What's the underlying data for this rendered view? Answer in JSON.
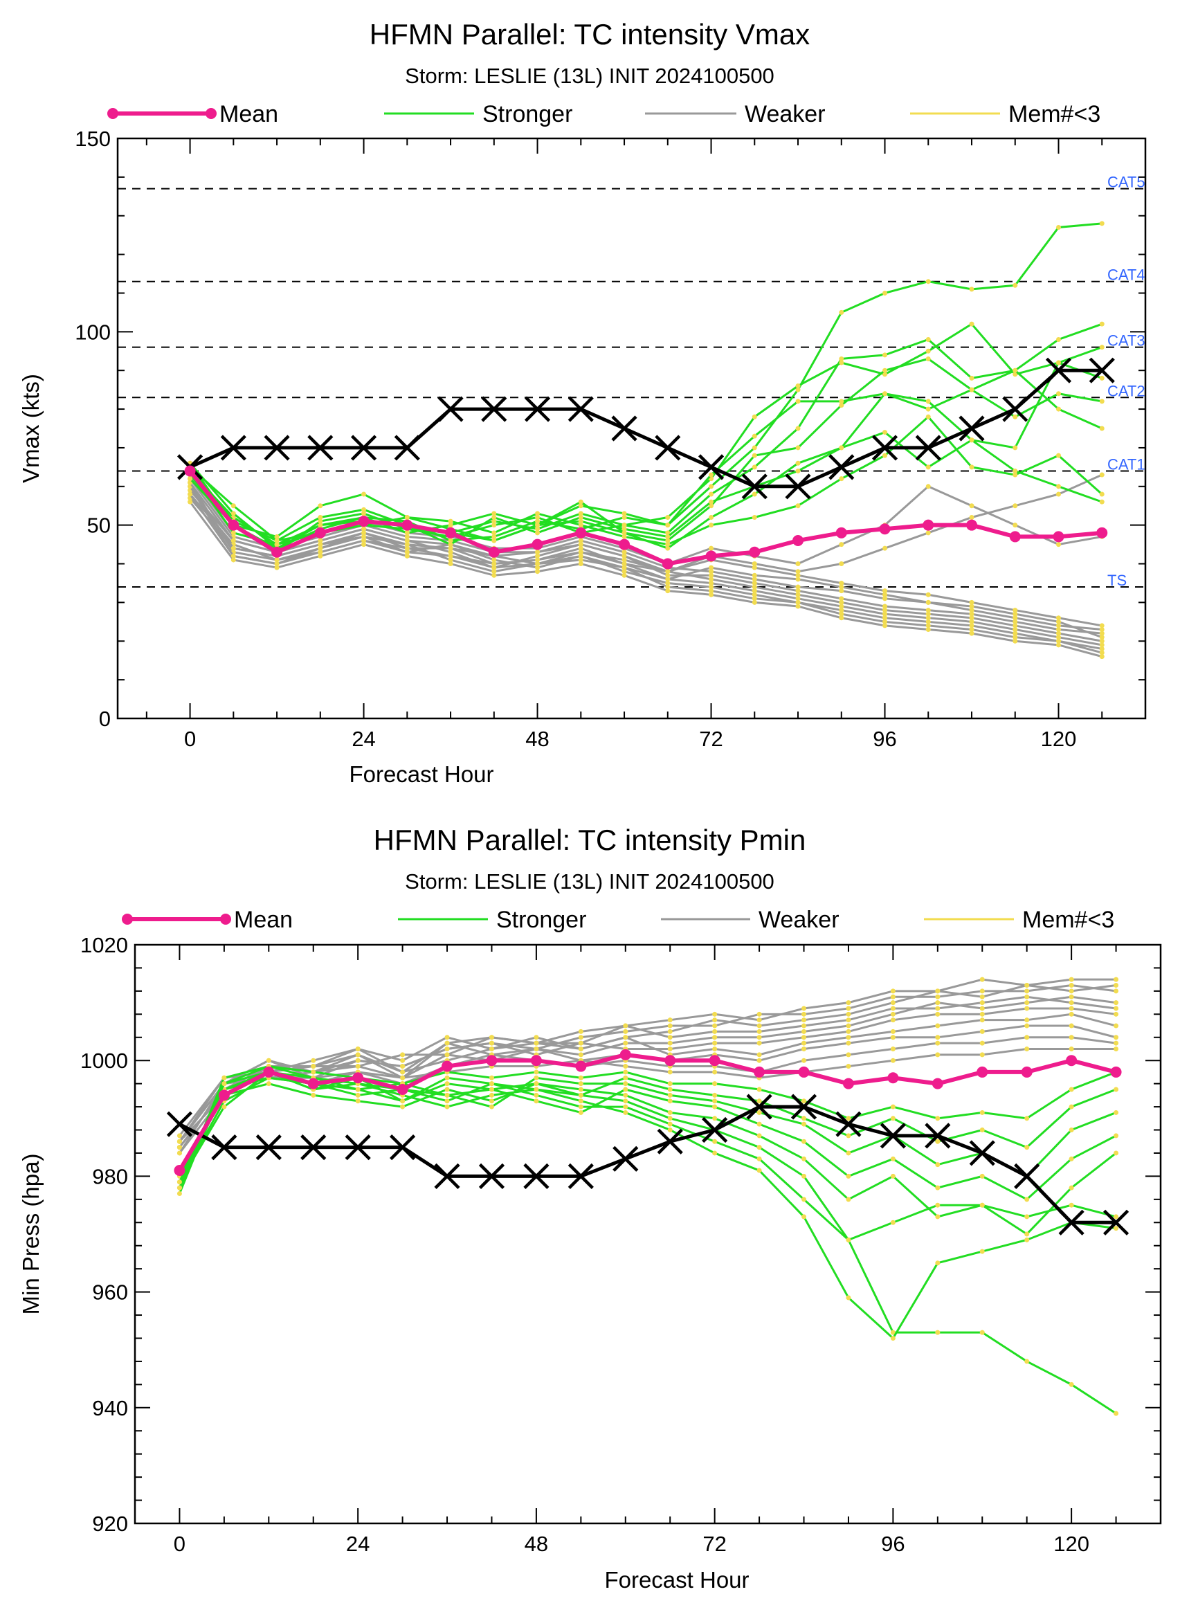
{
  "charts": [
    {
      "type": "line",
      "title": "HFMN Parallel: TC intensity Vmax",
      "subtitle": "Storm: LESLIE (13L) INIT 2024100500",
      "xlabel": "Forecast Hour",
      "ylabel": "Vmax (kts)",
      "xlim": [
        -10,
        132
      ],
      "ylim": [
        0,
        150
      ],
      "xticks": [
        0,
        24,
        48,
        72,
        96,
        120
      ],
      "yticks": [
        0,
        50,
        100,
        150
      ],
      "grid": false,
      "legend": {
        "position": "top",
        "entries": [
          {
            "label": "Mean",
            "color": "#ee1c8d"
          },
          {
            "label": "Stronger",
            "color": "#22dd22"
          },
          {
            "label": "Weaker",
            "color": "#999999"
          },
          {
            "label": "Mem#<3",
            "color": "#f2dc50"
          }
        ]
      },
      "colors": {
        "mean": "#ee1c8d",
        "stronger": "#22dd22",
        "weaker": "#999999",
        "points": "#f2dc50",
        "observed": "#000000",
        "category_label": "#3366ff"
      },
      "reference_lines": [
        {
          "label": "TS",
          "value": 34
        },
        {
          "label": "CAT1",
          "value": 64
        },
        {
          "label": "CAT2",
          "value": 83
        },
        {
          "label": "CAT3",
          "value": 96
        },
        {
          "label": "CAT4",
          "value": 113
        },
        {
          "label": "CAT5",
          "value": 137
        }
      ],
      "x": [
        0,
        6,
        12,
        18,
        24,
        30,
        36,
        42,
        48,
        54,
        60,
        66,
        72,
        78,
        84,
        90,
        96,
        102,
        108,
        114,
        120,
        126
      ],
      "series": [
        {
          "name": "Mean",
          "values": [
            64,
            50,
            43,
            48,
            51,
            50,
            48,
            43,
            45,
            48,
            45,
            40,
            42,
            43,
            46,
            48,
            49,
            50,
            50,
            47,
            47,
            48
          ]
        },
        {
          "values": [
            65,
            70,
            70,
            70,
            70,
            70,
            80,
            80,
            80,
            80,
            75,
            70,
            65,
            60,
            60,
            65,
            70,
            70,
            75,
            80,
            90,
            90
          ]
        }
      ],
      "members_stronger": [
        [
          66,
          50,
          44,
          50,
          52,
          48,
          50,
          53,
          50,
          55,
          53,
          50,
          60,
          70,
          85,
          105,
          110,
          113,
          111,
          112,
          127,
          128
        ],
        [
          64,
          52,
          45,
          48,
          50,
          49,
          47,
          50,
          52,
          48,
          50,
          48,
          58,
          65,
          75,
          93,
          94,
          98,
          88,
          90,
          98,
          102
        ],
        [
          65,
          55,
          46,
          52,
          54,
          50,
          48,
          51,
          49,
          53,
          50,
          52,
          62,
          78,
          86,
          92,
          89,
          95,
          102,
          89,
          92,
          96
        ],
        [
          63,
          50,
          47,
          55,
          58,
          52,
          49,
          46,
          50,
          56,
          48,
          46,
          55,
          68,
          70,
          81,
          90,
          93,
          85,
          90,
          80,
          75
        ],
        [
          66,
          53,
          44,
          49,
          52,
          51,
          46,
          47,
          51,
          49,
          52,
          50,
          63,
          73,
          82,
          82,
          84,
          80,
          85,
          78,
          84,
          82
        ],
        [
          64,
          48,
          45,
          50,
          51,
          50,
          45,
          52,
          48,
          52,
          49,
          47,
          56,
          60,
          64,
          70,
          84,
          82,
          72,
          70,
          92,
          88
        ],
        [
          65,
          51,
          46,
          48,
          50,
          52,
          51,
          48,
          53,
          50,
          47,
          45,
          50,
          52,
          55,
          62,
          68,
          78,
          65,
          63,
          68,
          58
        ],
        [
          62,
          50,
          43,
          51,
          53,
          49,
          48,
          46,
          50,
          51,
          48,
          44,
          52,
          58,
          66,
          70,
          74,
          65,
          72,
          64,
          60,
          56
        ]
      ],
      "members_weaker": [
        [
          60,
          42,
          40,
          44,
          48,
          45,
          44,
          42,
          40,
          43,
          41,
          38,
          36,
          34,
          32,
          30,
          28,
          27,
          26,
          24,
          22,
          20
        ],
        [
          58,
          45,
          41,
          43,
          46,
          44,
          42,
          40,
          41,
          44,
          40,
          36,
          35,
          33,
          31,
          29,
          27,
          26,
          25,
          23,
          21,
          19
        ],
        [
          57,
          44,
          42,
          45,
          47,
          43,
          45,
          41,
          39,
          42,
          38,
          35,
          34,
          32,
          30,
          28,
          26,
          25,
          24,
          22,
          20,
          18
        ],
        [
          59,
          46,
          43,
          46,
          49,
          46,
          43,
          39,
          42,
          45,
          42,
          37,
          37,
          35,
          33,
          31,
          29,
          28,
          27,
          25,
          23,
          22
        ],
        [
          61,
          43,
          41,
          44,
          47,
          45,
          41,
          38,
          40,
          41,
          39,
          34,
          33,
          31,
          30,
          27,
          25,
          24,
          23,
          21,
          20,
          17
        ],
        [
          56,
          41,
          39,
          42,
          45,
          42,
          40,
          37,
          38,
          40,
          37,
          33,
          32,
          30,
          29,
          26,
          24,
          23,
          22,
          20,
          19,
          16
        ],
        [
          62,
          47,
          44,
          47,
          50,
          47,
          46,
          43,
          43,
          46,
          43,
          39,
          38,
          36,
          34,
          33,
          31,
          30,
          28,
          26,
          24,
          23
        ],
        [
          60,
          44,
          42,
          45,
          48,
          44,
          44,
          40,
          41,
          43,
          40,
          38,
          41,
          39,
          37,
          35,
          33,
          32,
          30,
          28,
          26,
          24
        ],
        [
          58,
          42,
          40,
          43,
          46,
          43,
          42,
          39,
          40,
          42,
          39,
          36,
          39,
          37,
          36,
          34,
          32,
          30,
          29,
          27,
          25,
          21
        ],
        [
          63,
          48,
          45,
          48,
          51,
          48,
          47,
          44,
          44,
          47,
          44,
          40,
          44,
          42,
          40,
          45,
          50,
          60,
          55,
          50,
          45,
          47
        ],
        [
          61,
          46,
          43,
          46,
          49,
          46,
          45,
          42,
          43,
          45,
          42,
          38,
          42,
          40,
          38,
          40,
          44,
          48,
          52,
          55,
          58,
          63
        ]
      ]
    },
    {
      "type": "line",
      "title": "HFMN Parallel: TC intensity Pmin",
      "subtitle": "Storm: LESLIE (13L) INIT 2024100500",
      "xlabel": "Forecast Hour",
      "ylabel": "Min Press (hpa)",
      "xlim": [
        -6,
        132
      ],
      "ylim": [
        920,
        1020
      ],
      "xticks": [
        0,
        24,
        48,
        72,
        96,
        120
      ],
      "yticks": [
        920,
        940,
        960,
        980,
        1000,
        1020
      ],
      "grid": false,
      "legend": {
        "position": "top",
        "entries": [
          {
            "label": "Mean",
            "color": "#ee1c8d"
          },
          {
            "label": "Stronger",
            "color": "#22dd22"
          },
          {
            "label": "Weaker",
            "color": "#999999"
          },
          {
            "label": "Mem#<3",
            "color": "#f2dc50"
          }
        ]
      },
      "colors": {
        "mean": "#ee1c8d",
        "stronger": "#22dd22",
        "weaker": "#999999",
        "points": "#f2dc50",
        "observed": "#000000"
      },
      "reference_lines": [],
      "x": [
        0,
        6,
        12,
        18,
        24,
        30,
        36,
        42,
        48,
        54,
        60,
        66,
        72,
        78,
        84,
        90,
        96,
        102,
        108,
        114,
        120,
        126
      ],
      "series": [
        {
          "name": "Mean",
          "values": [
            981,
            994,
            998,
            996,
            997,
            995,
            999,
            1000,
            1000,
            999,
            1001,
            1000,
            1000,
            998,
            998,
            996,
            997,
            996,
            998,
            998,
            1000,
            998
          ]
        },
        {
          "values": [
            989,
            985,
            985,
            985,
            985,
            985,
            980,
            980,
            980,
            980,
            983,
            986,
            988,
            992,
            992,
            989,
            987,
            987,
            984,
            980,
            972,
            972
          ]
        }
      ],
      "members_stronger": [
        [
          977,
          996,
          998,
          997,
          995,
          996,
          994,
          995,
          996,
          994,
          993,
          990,
          988,
          985,
          980,
          969,
          953,
          953,
          953,
          948,
          944,
          939
        ],
        [
          978,
          995,
          998,
          995,
          996,
          994,
          992,
          994,
          995,
          993,
          991,
          988,
          984,
          981,
          973,
          959,
          952,
          965,
          967,
          969,
          972,
          971
        ],
        [
          979,
          993,
          997,
          996,
          994,
          995,
          993,
          996,
          994,
          992,
          992,
          989,
          986,
          983,
          976,
          969,
          972,
          975,
          975,
          973,
          975,
          973
        ],
        [
          980,
          994,
          996,
          994,
          993,
          992,
          995,
          993,
          996,
          995,
          994,
          991,
          990,
          987,
          983,
          976,
          980,
          973,
          975,
          970,
          978,
          984
        ],
        [
          979,
          992,
          998,
          995,
          997,
          993,
          996,
          995,
          993,
          991,
          995,
          993,
          992,
          989,
          986,
          980,
          983,
          978,
          980,
          976,
          983,
          987
        ],
        [
          978,
          997,
          999,
          997,
          996,
          995,
          994,
          992,
          997,
          996,
          996,
          994,
          993,
          991,
          989,
          984,
          987,
          982,
          984,
          980,
          988,
          991
        ],
        [
          980,
          995,
          997,
          996,
          995,
          993,
          997,
          996,
          995,
          994,
          997,
          995,
          994,
          993,
          990,
          987,
          990,
          986,
          988,
          985,
          992,
          995
        ],
        [
          979,
          996,
          999,
          998,
          997,
          996,
          998,
          997,
          998,
          997,
          998,
          996,
          996,
          995,
          993,
          990,
          992,
          990,
          991,
          990,
          995,
          998
        ]
      ],
      "members_weaker": [
        [
          985,
          995,
          999,
          999,
          1001,
          998,
          1003,
          1004,
          1003,
          1003,
          1006,
          1007,
          1008,
          1007,
          1009,
          1010,
          1012,
          1012,
          1014,
          1013,
          1014,
          1014
        ],
        [
          986,
          996,
          1000,
          998,
          1000,
          999,
          1002,
          1003,
          1002,
          1004,
          1005,
          1006,
          1006,
          1008,
          1008,
          1009,
          1011,
          1011,
          1012,
          1012,
          1013,
          1012
        ],
        [
          987,
          997,
          998,
          1000,
          1002,
          1000,
          1004,
          1002,
          1004,
          1002,
          1004,
          1005,
          1007,
          1006,
          1007,
          1008,
          1010,
          1012,
          1011,
          1013,
          1012,
          1013
        ],
        [
          986,
          994,
          999,
          999,
          999,
          1001,
          1001,
          1004,
          1003,
          1005,
          1006,
          1004,
          1005,
          1005,
          1006,
          1007,
          1009,
          1009,
          1010,
          1011,
          1010,
          1009
        ],
        [
          985,
          995,
          997,
          998,
          1001,
          997,
          1003,
          1001,
          1002,
          1001,
          1003,
          1003,
          1004,
          1004,
          1005,
          1006,
          1008,
          1010,
          1009,
          1010,
          1011,
          1010
        ],
        [
          984,
          996,
          1000,
          997,
          1000,
          999,
          1002,
          1003,
          1001,
          1003,
          1002,
          1002,
          1003,
          1003,
          1004,
          1005,
          1007,
          1008,
          1008,
          1009,
          1009,
          1008
        ],
        [
          986,
          997,
          998,
          999,
          1002,
          998,
          1000,
          1002,
          1003,
          1002,
          1004,
          1001,
          1002,
          1001,
          1003,
          1004,
          1005,
          1006,
          1007,
          1007,
          1008,
          1006
        ],
        [
          985,
          995,
          999,
          998,
          999,
          997,
          1001,
          1000,
          1002,
          1000,
          1001,
          1000,
          1001,
          1000,
          1002,
          1003,
          1004,
          1004,
          1005,
          1006,
          1006,
          1004
        ],
        [
          984,
          994,
          998,
          996,
          998,
          996,
          999,
          1001,
          1000,
          999,
          1000,
          999,
          999,
          998,
          1000,
          1001,
          1002,
          1003,
          1003,
          1004,
          1004,
          1003
        ],
        [
          986,
          996,
          997,
          997,
          998,
          997,
          998,
          999,
          999,
          1000,
          999,
          998,
          998,
          997,
          998,
          999,
          1000,
          1001,
          1001,
          1002,
          1002,
          1002
        ]
      ]
    }
  ]
}
